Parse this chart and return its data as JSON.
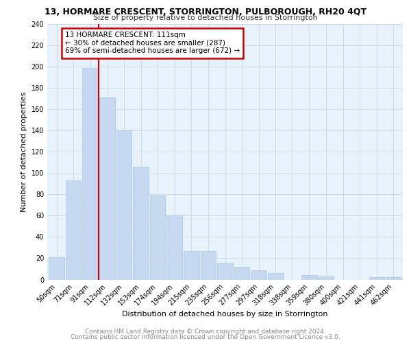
{
  "title": "13, HORMARE CRESCENT, STORRINGTON, PULBOROUGH, RH20 4QT",
  "subtitle": "Size of property relative to detached houses in Storrington",
  "xlabel": "Distribution of detached houses by size in Storrington",
  "ylabel": "Number of detached properties",
  "categories": [
    "50sqm",
    "71sqm",
    "91sqm",
    "112sqm",
    "132sqm",
    "153sqm",
    "174sqm",
    "194sqm",
    "215sqm",
    "235sqm",
    "256sqm",
    "277sqm",
    "297sqm",
    "318sqm",
    "338sqm",
    "359sqm",
    "380sqm",
    "400sqm",
    "421sqm",
    "441sqm",
    "462sqm"
  ],
  "values": [
    21,
    93,
    199,
    171,
    140,
    106,
    79,
    60,
    27,
    27,
    16,
    12,
    9,
    6,
    0,
    4,
    3,
    0,
    0,
    2,
    2
  ],
  "bar_color": "#c5d8f0",
  "bar_edge_color": "#a8c8e8",
  "grid_color": "#c8d8ea",
  "background_color": "#e8f2fb",
  "annotation_title": "13 HORMARE CRESCENT: 111sqm",
  "annotation_line1": "← 30% of detached houses are smaller (287)",
  "annotation_line2": "69% of semi-detached houses are larger (672) →",
  "annotation_box_color": "#ffffff",
  "annotation_box_edge": "#cc0000",
  "vline_color": "#cc0000",
  "vline_x": 2.5,
  "ylim": [
    0,
    240
  ],
  "yticks": [
    0,
    20,
    40,
    60,
    80,
    100,
    120,
    140,
    160,
    180,
    200,
    220,
    240
  ],
  "footnote1": "Contains HM Land Registry data © Crown copyright and database right 2024.",
  "footnote2": "Contains public sector information licensed under the Open Government Licence v3.0.",
  "title_fontsize": 9,
  "subtitle_fontsize": 8,
  "footnote_fontsize": 6.5,
  "ylabel_fontsize": 8,
  "xlabel_fontsize": 8,
  "tick_fontsize": 7,
  "annotation_fontsize": 7.5
}
